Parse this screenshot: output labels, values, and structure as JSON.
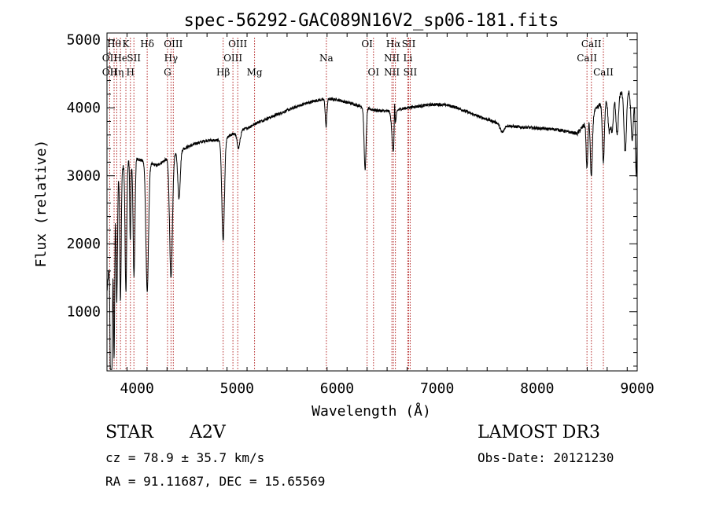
{
  "chart_data": {
    "type": "line",
    "title": "spec-56292-GAC089N16V2_sp06-181.fits",
    "xlabel": "Wavelength (Å)",
    "ylabel": "Flux (relative)",
    "xlim": [
      3700,
      9000
    ],
    "ylim": [
      130,
      5100
    ],
    "xticks": [
      4000,
      5000,
      6000,
      7000,
      8000,
      9000
    ],
    "yticks": [
      1000,
      2000,
      3000,
      4000,
      5000
    ],
    "xminor_step": 200,
    "yminor_step": 200,
    "line_color": "#000000",
    "marker_color": "#b22222",
    "continuum": [
      [
        3700,
        1300
      ],
      [
        3800,
        3000
      ],
      [
        3900,
        3200
      ],
      [
        4000,
        3250
      ],
      [
        4100,
        3200
      ],
      [
        4200,
        3150
      ],
      [
        4300,
        3250
      ],
      [
        4400,
        3350
      ],
      [
        4500,
        3420
      ],
      [
        4600,
        3480
      ],
      [
        4700,
        3520
      ],
      [
        4800,
        3520
      ],
      [
        4900,
        3560
      ],
      [
        5000,
        3650
      ],
      [
        5100,
        3700
      ],
      [
        5200,
        3780
      ],
      [
        5300,
        3840
      ],
      [
        5400,
        3900
      ],
      [
        5500,
        3960
      ],
      [
        5600,
        4020
      ],
      [
        5700,
        4070
      ],
      [
        5800,
        4110
      ],
      [
        5900,
        4130
      ],
      [
        6000,
        4120
      ],
      [
        6100,
        4080
      ],
      [
        6200,
        4040
      ],
      [
        6300,
        3990
      ],
      [
        6400,
        3960
      ],
      [
        6500,
        3950
      ],
      [
        6600,
        3970
      ],
      [
        6700,
        4000
      ],
      [
        6800,
        4020
      ],
      [
        6900,
        4040
      ],
      [
        7000,
        4050
      ],
      [
        7100,
        4040
      ],
      [
        7200,
        4000
      ],
      [
        7300,
        3940
      ],
      [
        7400,
        3880
      ],
      [
        7500,
        3830
      ],
      [
        7600,
        3780
      ],
      [
        7700,
        3740
      ],
      [
        7800,
        3720
      ],
      [
        7900,
        3710
      ],
      [
        8000,
        3700
      ],
      [
        8100,
        3690
      ],
      [
        8200,
        3680
      ],
      [
        8300,
        3650
      ],
      [
        8400,
        3620
      ],
      [
        8500,
        3800
      ],
      [
        8600,
        4000
      ],
      [
        8700,
        4150
      ],
      [
        8800,
        4200
      ],
      [
        8900,
        4250
      ],
      [
        9000,
        4200
      ]
    ],
    "absorptions": [
      [
        3736,
        2000,
        6
      ],
      [
        3750,
        1800,
        6
      ],
      [
        3771,
        2200,
        6
      ],
      [
        3798,
        1800,
        7
      ],
      [
        3835,
        1900,
        7
      ],
      [
        3889,
        1900,
        8
      ],
      [
        3933,
        1200,
        5
      ],
      [
        3970,
        1700,
        9
      ],
      [
        4102,
        1900,
        13
      ],
      [
        4340,
        1800,
        14
      ],
      [
        4420,
        700,
        12
      ],
      [
        4861,
        1500,
        13
      ],
      [
        5015,
        250,
        15
      ],
      [
        5890,
        400,
        8
      ],
      [
        6280,
        900,
        10
      ],
      [
        6563,
        600,
        15
      ],
      [
        7650,
        120,
        20
      ],
      [
        8498,
        700,
        8
      ],
      [
        8542,
        900,
        10
      ],
      [
        8662,
        900,
        10
      ],
      [
        8720,
        500,
        12
      ],
      [
        8750,
        500,
        12
      ],
      [
        8800,
        600,
        12
      ],
      [
        8880,
        900,
        12
      ],
      [
        8950,
        700,
        12
      ],
      [
        8990,
        1200,
        8
      ]
    ],
    "emissions": [
      [
        6575,
        500,
        4
      ]
    ],
    "line_markers": [
      {
        "x": 3727,
        "labels": [
          {
            "text": "OII",
            "row": 1
          },
          {
            "text": "OII",
            "row": 2
          }
        ]
      },
      {
        "x": 3771,
        "labels": [
          {
            "text": "Hθ",
            "row": 0
          }
        ]
      },
      {
        "x": 3798,
        "labels": [
          {
            "text": "Hη",
            "row": 2
          }
        ]
      },
      {
        "x": 3835,
        "labels": [
          {
            "text": "He",
            "row": 1
          }
        ]
      },
      {
        "x": 3889,
        "labels": [
          {
            "text": "K",
            "row": 0
          }
        ]
      },
      {
        "x": 3934,
        "labels": [
          {
            "text": "H",
            "row": 2
          }
        ]
      },
      {
        "x": 3969,
        "labels": [
          {
            "text": "SII",
            "row": 1
          }
        ]
      },
      {
        "x": 4102,
        "labels": [
          {
            "text": "Hδ",
            "row": 0
          }
        ]
      },
      {
        "x": 4305,
        "labels": [
          {
            "text": "G",
            "row": 2
          }
        ]
      },
      {
        "x": 4340,
        "labels": [
          {
            "text": "Hγ",
            "row": 1
          }
        ]
      },
      {
        "x": 4363,
        "labels": [
          {
            "text": "OIII",
            "row": 0
          }
        ]
      },
      {
        "x": 4861,
        "labels": [
          {
            "text": "Hβ",
            "row": 2
          }
        ]
      },
      {
        "x": 4959,
        "labels": [
          {
            "text": "OIII",
            "row": 1
          }
        ]
      },
      {
        "x": 5007,
        "labels": [
          {
            "text": "OIII",
            "row": 0
          }
        ]
      },
      {
        "x": 5175,
        "labels": [
          {
            "text": "Mg",
            "row": 2
          }
        ]
      },
      {
        "x": 5893,
        "labels": [
          {
            "text": "Na",
            "row": 1
          }
        ]
      },
      {
        "x": 6300,
        "labels": [
          {
            "text": "OI",
            "row": 0
          }
        ]
      },
      {
        "x": 6364,
        "labels": [
          {
            "text": "OI",
            "row": 2
          }
        ]
      },
      {
        "x": 6548,
        "labels": [
          {
            "text": "NII",
            "row": 1
          },
          {
            "text": "NII",
            "row": 2
          }
        ]
      },
      {
        "x": 6563,
        "labels": [
          {
            "text": "Hα",
            "row": 0
          }
        ]
      },
      {
        "x": 6583,
        "labels": []
      },
      {
        "x": 6707,
        "labels": [
          {
            "text": "Li",
            "row": 1
          }
        ]
      },
      {
        "x": 6716,
        "labels": [
          {
            "text": "SII",
            "row": 0
          }
        ]
      },
      {
        "x": 6731,
        "labels": [
          {
            "text": "SII",
            "row": 2
          }
        ]
      },
      {
        "x": 8498,
        "labels": [
          {
            "text": "CaII",
            "row": 1
          }
        ]
      },
      {
        "x": 8542,
        "labels": [
          {
            "text": "CaII",
            "row": 0
          }
        ]
      },
      {
        "x": 8662,
        "labels": [
          {
            "text": "CaII",
            "row": 2
          }
        ]
      }
    ]
  },
  "info": {
    "object_class": "STAR",
    "subclass": "A2V",
    "survey": "LAMOST DR3",
    "redshift": "cz = 78.9 ± 35.7 km/s",
    "obs_date": "Obs-Date: 20121230",
    "coords": "RA =  91.11687, DEC =  15.65569"
  }
}
